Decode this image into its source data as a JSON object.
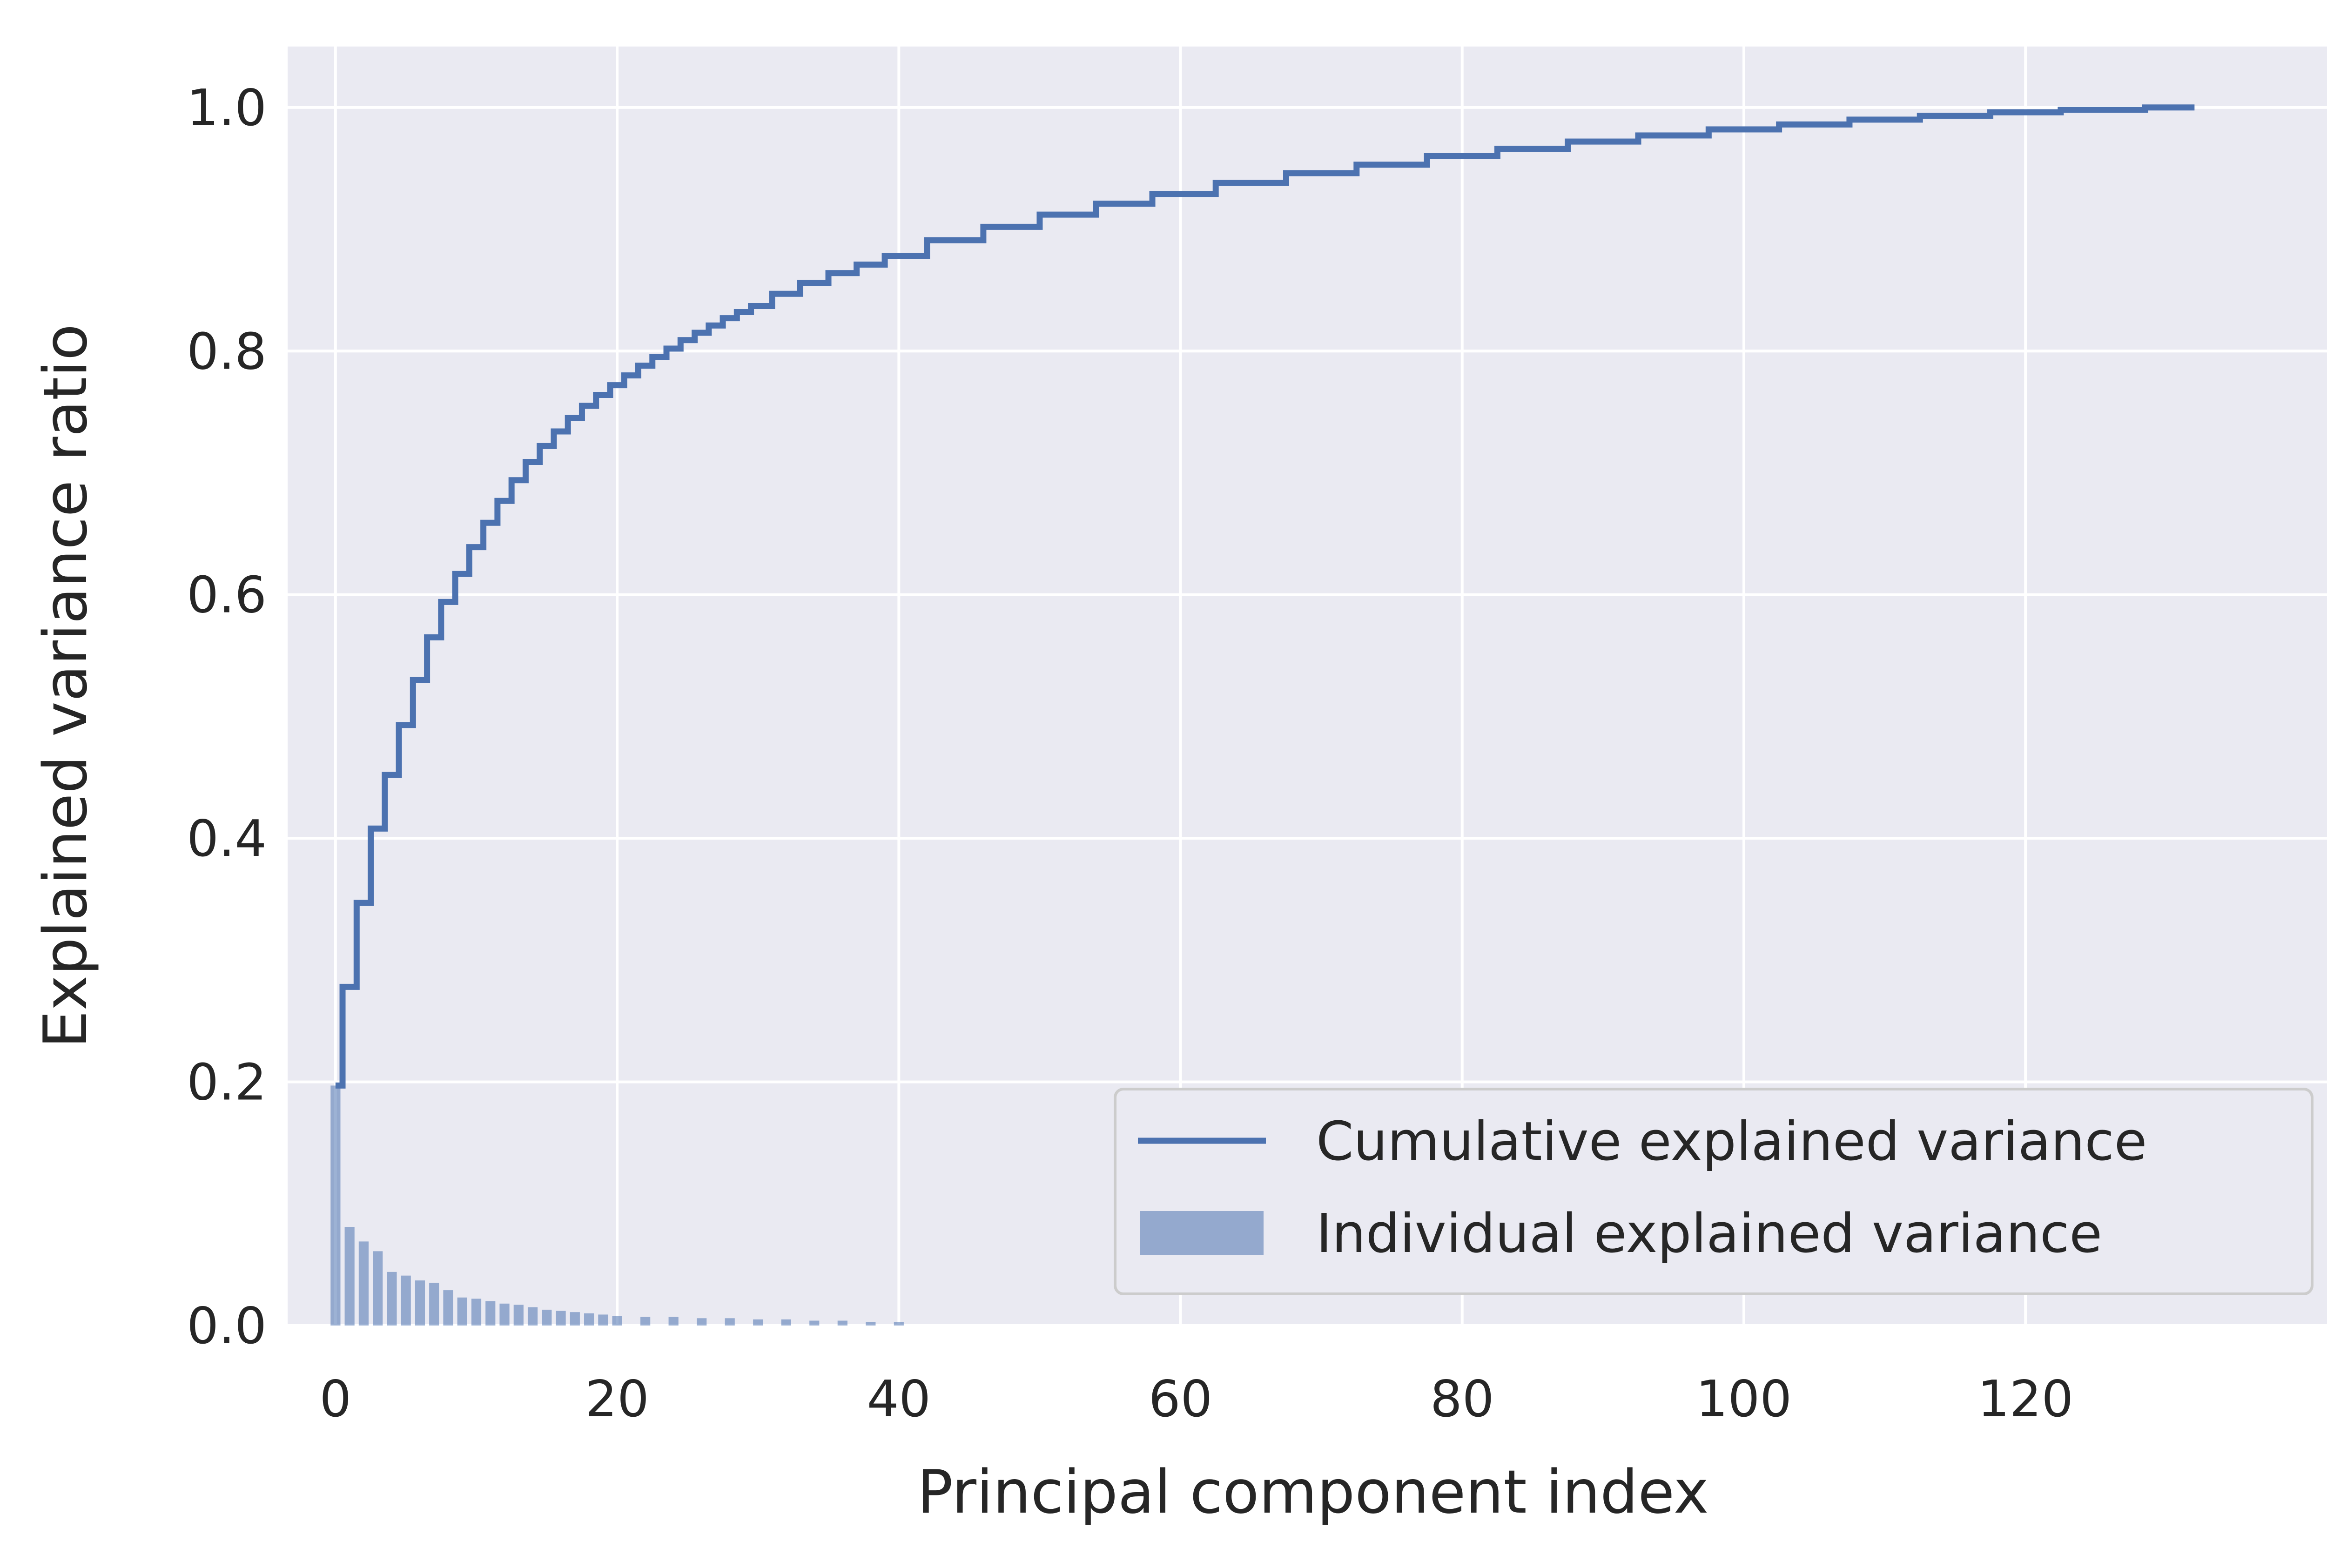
{
  "colors": {
    "background": "#ffffff",
    "plot_background": "#eaeaf2",
    "grid": "#ffffff",
    "line": "#4c72b0",
    "bars": "#4c72b0",
    "legend_border": "#cccccc"
  },
  "chart_data": {
    "type": "bar",
    "xlabel": "Principal component index",
    "ylabel": "Explained variance ratio",
    "xlim": [
      -3.4,
      142.2
    ],
    "ylim": [
      0,
      1.05
    ],
    "xticks": [
      0,
      20,
      40,
      60,
      80,
      100,
      120
    ],
    "yticks": [
      0.0,
      0.2,
      0.4,
      0.6,
      0.8,
      1.0
    ],
    "xtick_labels": [
      "0",
      "20",
      "40",
      "60",
      "80",
      "100",
      "120"
    ],
    "ytick_labels": [
      "0.0",
      "0.2",
      "0.4",
      "0.6",
      "0.8",
      "1.0"
    ],
    "grid": true,
    "legend_position": "lower right",
    "series": [
      {
        "name": "Cumulative explained variance",
        "type": "step",
        "x": [
          0,
          1,
          2,
          3,
          4,
          5,
          6,
          7,
          8,
          9,
          10,
          11,
          12,
          13,
          14,
          15,
          16,
          17,
          18,
          19,
          20,
          21,
          22,
          23,
          24,
          25,
          26,
          27,
          28,
          29,
          30,
          32,
          34,
          36,
          38,
          40,
          44,
          48,
          52,
          56,
          60,
          65,
          70,
          75,
          80,
          85,
          90,
          95,
          100,
          105,
          110,
          115,
          120,
          125,
          132
        ],
        "y": [
          0.197,
          0.278,
          0.347,
          0.408,
          0.452,
          0.493,
          0.53,
          0.565,
          0.594,
          0.617,
          0.639,
          0.659,
          0.677,
          0.694,
          0.709,
          0.722,
          0.734,
          0.745,
          0.755,
          0.764,
          0.772,
          0.78,
          0.788,
          0.795,
          0.802,
          0.809,
          0.815,
          0.821,
          0.827,
          0.832,
          0.837,
          0.847,
          0.856,
          0.864,
          0.871,
          0.878,
          0.891,
          0.902,
          0.912,
          0.921,
          0.929,
          0.938,
          0.946,
          0.953,
          0.96,
          0.966,
          0.972,
          0.977,
          0.982,
          0.986,
          0.99,
          0.993,
          0.996,
          0.998,
          1.0
        ]
      },
      {
        "name": "Individual explained variance",
        "type": "bar",
        "x": [
          0,
          1,
          2,
          3,
          4,
          5,
          6,
          7,
          8,
          9,
          10,
          11,
          12,
          13,
          14,
          15,
          16,
          17,
          18,
          19,
          20,
          22,
          24,
          26,
          28,
          30,
          32,
          34,
          36,
          38,
          40
        ],
        "values": [
          0.197,
          0.081,
          0.069,
          0.061,
          0.044,
          0.041,
          0.037,
          0.035,
          0.029,
          0.023,
          0.022,
          0.02,
          0.018,
          0.017,
          0.015,
          0.013,
          0.012,
          0.011,
          0.01,
          0.009,
          0.008,
          0.007,
          0.007,
          0.006,
          0.006,
          0.005,
          0.005,
          0.004,
          0.004,
          0.003,
          0.003
        ]
      }
    ]
  }
}
